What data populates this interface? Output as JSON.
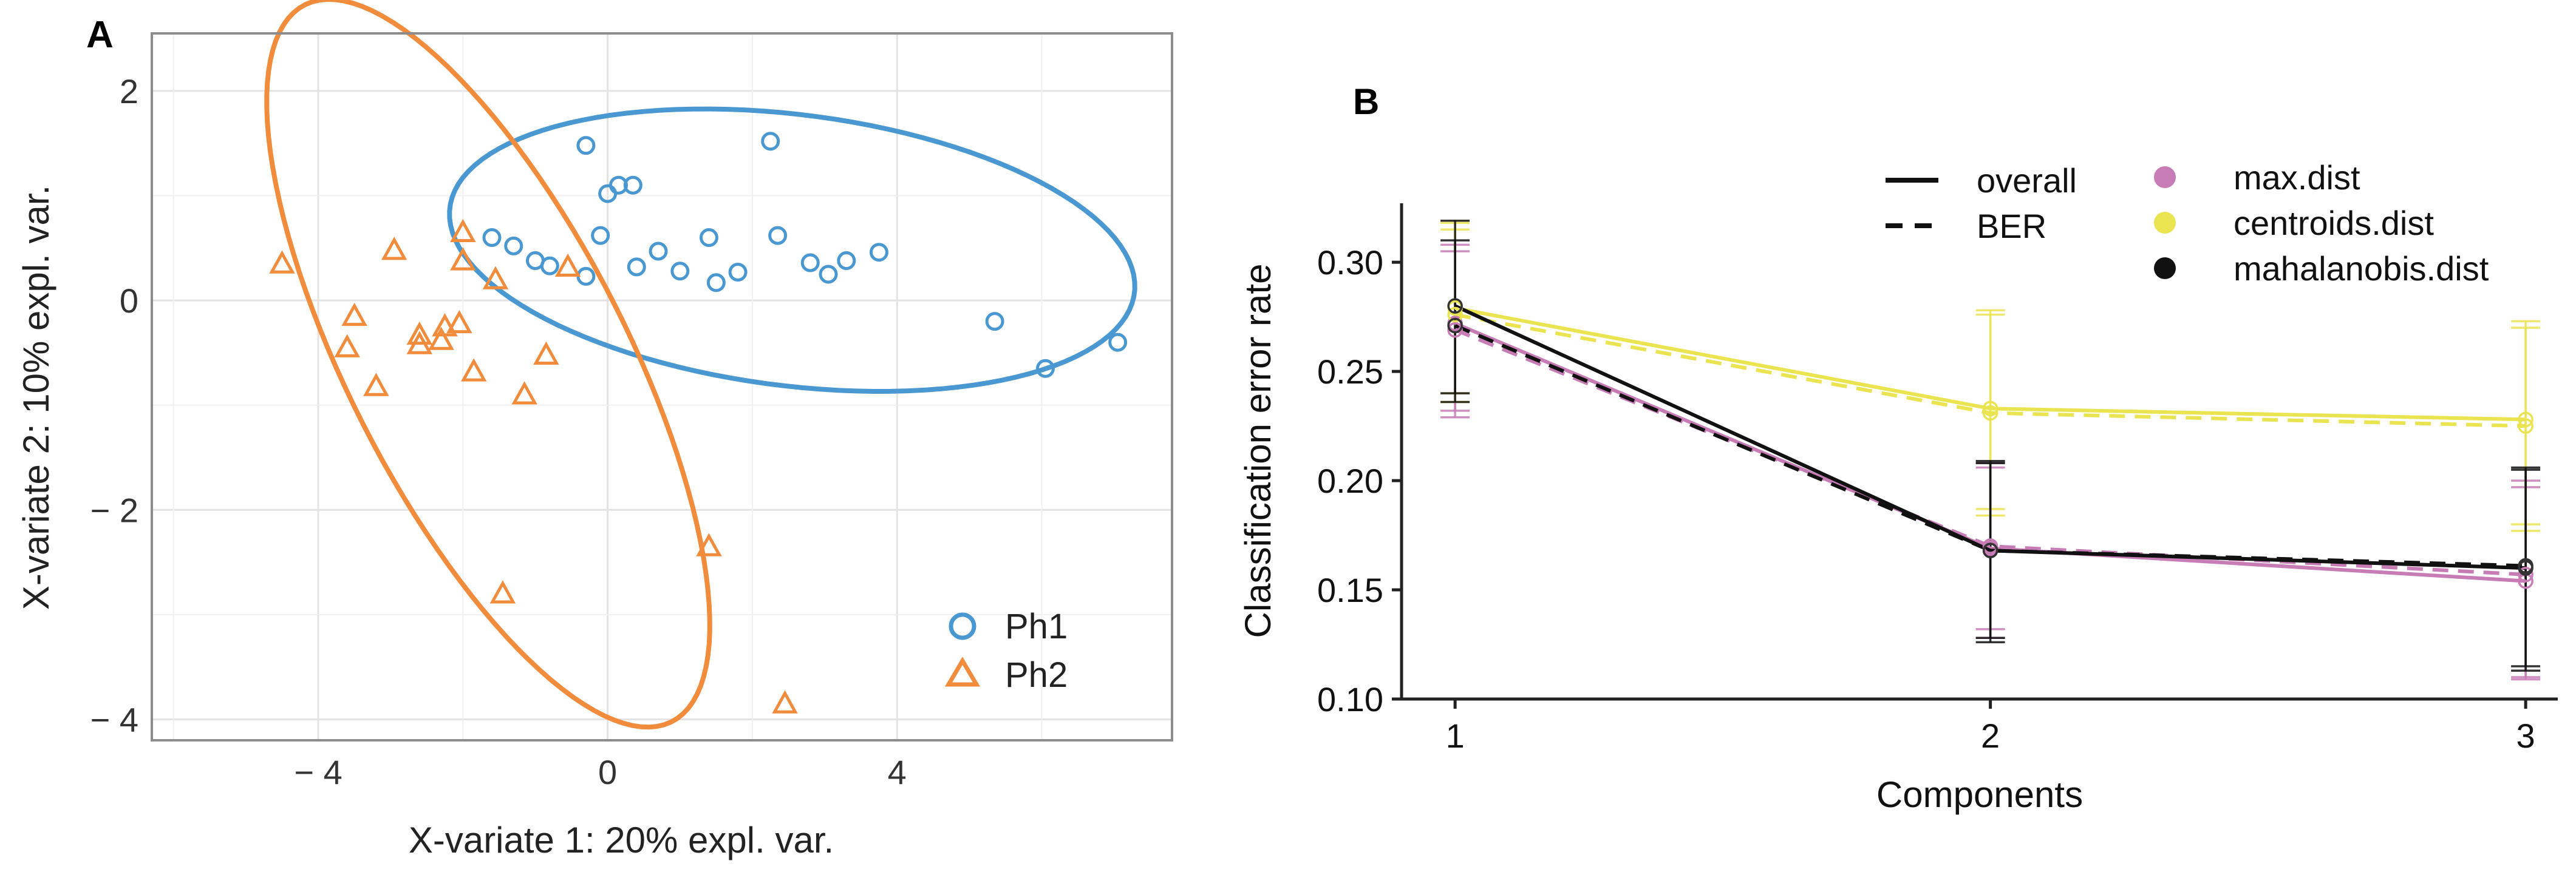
{
  "colors": {
    "ph1": "#4a98d1",
    "ph2": "#f08c3c",
    "max": "#c77cb6",
    "centroids": "#eae451",
    "mahalanobis": "#111111",
    "gridA": "#e3e3e3",
    "panelBorder": "#8c8c8c"
  },
  "chart_data": [
    {
      "type": "scatter",
      "panel_label": "A",
      "xlabel": "X-variate 1: 20% expl. var.",
      "ylabel": "X-variate 2: 10% expl. var.",
      "xlim": [
        -6.3,
        7.8
      ],
      "ylim": [
        -4.2,
        2.55
      ],
      "xticks": [
        {
          "v": -4,
          "label": "− 4"
        },
        {
          "v": 0,
          "label": "0"
        },
        {
          "v": 4,
          "label": "4"
        }
      ],
      "yticks": [
        {
          "v": 2,
          "label": "2"
        },
        {
          "v": 0,
          "label": "0"
        },
        {
          "v": -2,
          "label": "− 2"
        },
        {
          "v": -4,
          "label": "− 4"
        }
      ],
      "legend": [
        {
          "name": "Ph1",
          "marker": "circle"
        },
        {
          "name": "Ph2",
          "marker": "triangle"
        }
      ],
      "series": [
        {
          "name": "Ph1",
          "points": [
            [
              -0.3,
              1.48
            ],
            [
              2.25,
              1.52
            ],
            [
              0.15,
              1.1
            ],
            [
              0.35,
              1.1
            ],
            [
              0.0,
              1.02
            ],
            [
              -1.6,
              0.6
            ],
            [
              -1.3,
              0.52
            ],
            [
              -1.0,
              0.38
            ],
            [
              -0.8,
              0.33
            ],
            [
              -0.1,
              0.62
            ],
            [
              0.7,
              0.47
            ],
            [
              1.4,
              0.6
            ],
            [
              2.35,
              0.62
            ],
            [
              1.0,
              0.28
            ],
            [
              0.4,
              0.32
            ],
            [
              -0.3,
              0.23
            ],
            [
              1.8,
              0.27
            ],
            [
              1.5,
              0.17
            ],
            [
              2.8,
              0.36
            ],
            [
              3.05,
              0.25
            ],
            [
              3.3,
              0.38
            ],
            [
              3.75,
              0.46
            ],
            [
              5.35,
              -0.2
            ],
            [
              6.05,
              -0.65
            ],
            [
              7.05,
              -0.4
            ]
          ]
        },
        {
          "name": "Ph2",
          "points": [
            [
              -4.5,
              0.35
            ],
            [
              -2.95,
              0.48
            ],
            [
              -2.0,
              0.65
            ],
            [
              -2.0,
              0.38
            ],
            [
              -1.55,
              0.2
            ],
            [
              -0.55,
              0.32
            ],
            [
              -3.5,
              -0.15
            ],
            [
              -3.6,
              -0.45
            ],
            [
              -2.6,
              -0.33
            ],
            [
              -2.6,
              -0.42
            ],
            [
              -2.3,
              -0.38
            ],
            [
              -2.25,
              -0.25
            ],
            [
              -2.05,
              -0.22
            ],
            [
              -1.85,
              -0.68
            ],
            [
              -3.2,
              -0.82
            ],
            [
              -1.15,
              -0.9
            ],
            [
              -0.85,
              -0.52
            ],
            [
              1.4,
              -2.35
            ],
            [
              -1.45,
              -2.8
            ],
            [
              2.45,
              -3.85
            ]
          ]
        }
      ],
      "ellipses": [
        {
          "group": "Ph1",
          "cx": 2.55,
          "cy": 0.48,
          "rx": 4.75,
          "ry": 1.3,
          "angle_deg": -4.5
        },
        {
          "group": "Ph2",
          "cx": -1.65,
          "cy": -0.6,
          "rx": 4.3,
          "ry": 1.72,
          "angle_deg": -50
        }
      ]
    },
    {
      "type": "line",
      "panel_label": "B",
      "xlabel": "Components",
      "ylabel": "Classification error rate",
      "x": [
        1,
        2,
        3
      ],
      "xlim": [
        0.9,
        3.06
      ],
      "ylim": [
        0.1,
        0.327
      ],
      "xtick_labels": [
        "1",
        "2",
        "3"
      ],
      "ytick_values": [
        0.1,
        0.15,
        0.2,
        0.25,
        0.3
      ],
      "ytick_labels": [
        "0.10",
        "0.15",
        "0.20",
        "0.25",
        "0.30"
      ],
      "linestyle_legend": [
        {
          "name": "overall",
          "style": "solid"
        },
        {
          "name": "BER",
          "style": "dashed"
        }
      ],
      "distance_legend": [
        {
          "name": "max.dist",
          "color_key": "max"
        },
        {
          "name": "centroids.dist",
          "color_key": "centroids"
        },
        {
          "name": "mahalanobis.dist",
          "color_key": "mahalanobis"
        }
      ],
      "series": [
        {
          "name": "max.dist overall",
          "distance": "max.dist",
          "style": "solid",
          "color_key": "max",
          "values": [
            0.272,
            0.169,
            0.154
          ],
          "err_low": [
            0.232,
            0.132,
            0.11
          ],
          "err_high": [
            0.308,
            0.208,
            0.197
          ]
        },
        {
          "name": "max.dist BER",
          "distance": "max.dist",
          "style": "dashed",
          "color_key": "max",
          "values": [
            0.269,
            0.17,
            0.157
          ],
          "err_low": [
            0.229,
            0.128,
            0.109
          ],
          "err_high": [
            0.305,
            0.206,
            0.2
          ]
        },
        {
          "name": "centroids.dist overall",
          "distance": "centroids.dist",
          "style": "solid",
          "color_key": "centroids",
          "values": [
            0.279,
            0.233,
            0.228
          ],
          "err_low": [
            0.24,
            0.187,
            0.18
          ],
          "err_high": [
            0.318,
            0.278,
            0.273
          ]
        },
        {
          "name": "centroids.dist BER",
          "distance": "centroids.dist",
          "style": "dashed",
          "color_key": "centroids",
          "values": [
            0.276,
            0.231,
            0.225
          ],
          "err_low": [
            0.236,
            0.184,
            0.177
          ],
          "err_high": [
            0.315,
            0.276,
            0.27
          ]
        },
        {
          "name": "mahalanobis.dist overall",
          "distance": "mahalanobis.dist",
          "style": "solid",
          "color_key": "mahalanobis",
          "values": [
            0.28,
            0.168,
            0.16
          ],
          "err_low": [
            0.24,
            0.126,
            0.113
          ],
          "err_high": [
            0.319,
            0.209,
            0.205
          ]
        },
        {
          "name": "mahalanobis.dist BER",
          "distance": "mahalanobis.dist",
          "style": "dashed",
          "color_key": "mahalanobis",
          "values": [
            0.271,
            0.168,
            0.161
          ],
          "err_low": [
            0.236,
            0.128,
            0.115
          ],
          "err_high": [
            0.31,
            0.208,
            0.206
          ]
        }
      ]
    }
  ]
}
